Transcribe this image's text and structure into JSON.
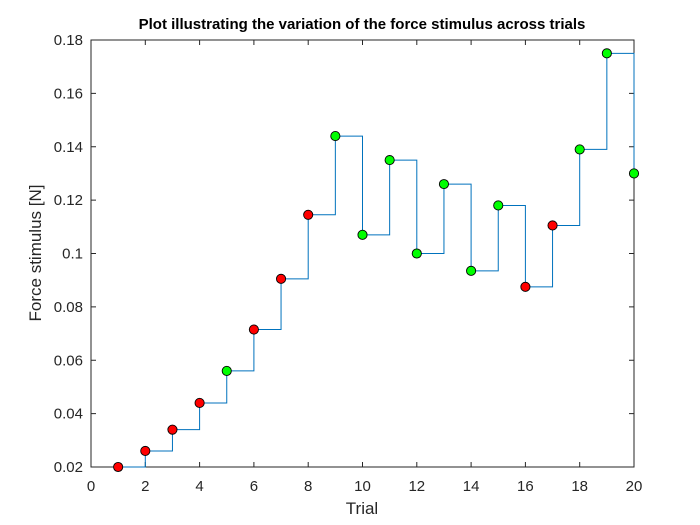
{
  "chart_data": {
    "type": "line",
    "title": "Plot illustrating the variation of the force stimulus across trials",
    "xlabel": "Trial",
    "ylabel": "Force stimulus [N]",
    "xlim": [
      0,
      20
    ],
    "ylim": [
      0.02,
      0.18
    ],
    "xticks": [
      0,
      2,
      4,
      6,
      8,
      10,
      12,
      14,
      16,
      18,
      20
    ],
    "yticks": [
      0.02,
      0.04,
      0.06,
      0.08,
      0.1,
      0.12,
      0.14,
      0.16,
      0.18
    ],
    "grid": false,
    "line_style": "stairs",
    "series": [
      {
        "x": [
          1,
          2,
          3,
          4,
          5,
          6,
          7,
          8,
          9,
          10,
          11,
          12,
          13,
          14,
          15,
          16,
          17,
          18,
          19,
          20
        ],
        "values": [
          0.02,
          0.026,
          0.034,
          0.044,
          0.056,
          0.0715,
          0.0905,
          0.1145,
          0.144,
          0.107,
          0.135,
          0.1,
          0.126,
          0.0935,
          0.118,
          0.0875,
          0.1105,
          0.139,
          0.175,
          0.13
        ],
        "markers": [
          "red",
          "red",
          "red",
          "red",
          "green",
          "red",
          "red",
          "red",
          "green",
          "green",
          "green",
          "green",
          "green",
          "green",
          "green",
          "red",
          "red",
          "green",
          "green",
          "green"
        ]
      }
    ],
    "colors": {
      "line": "#0072BD",
      "red": "#FF0000",
      "green": "#00FF00",
      "marker_edge": "#000000",
      "axes": "#262626"
    }
  }
}
